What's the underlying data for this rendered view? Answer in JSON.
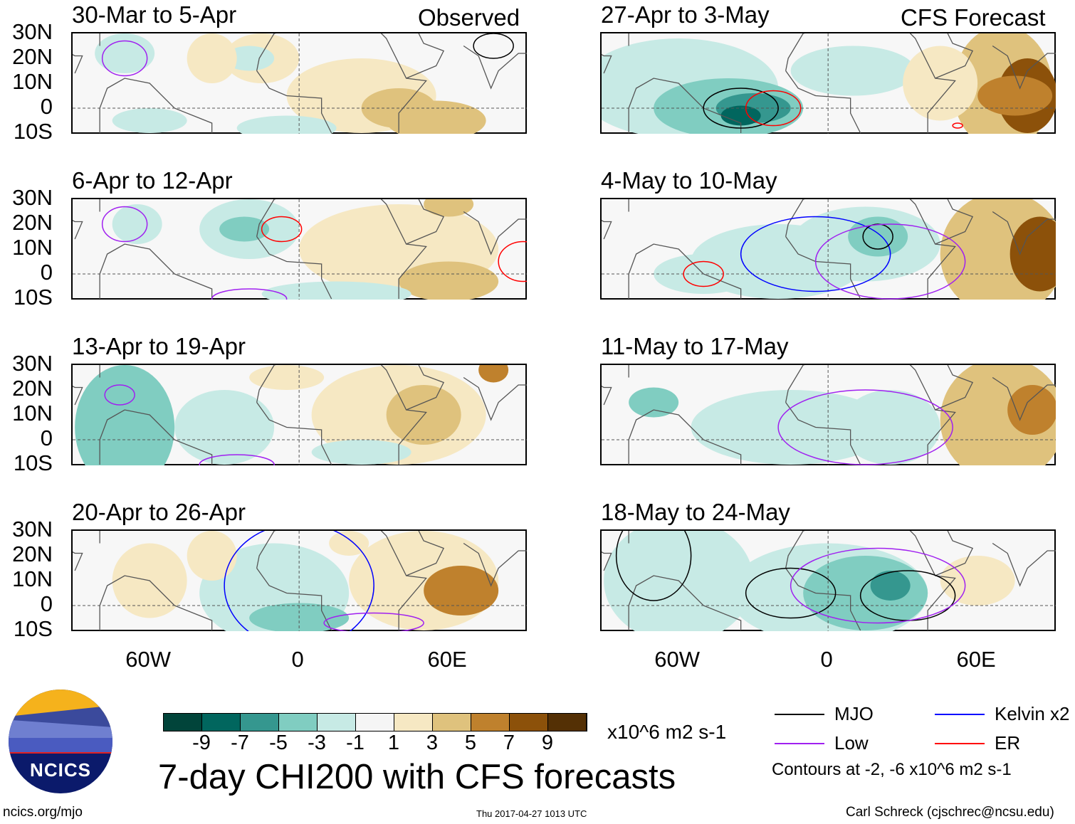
{
  "panels_left_header": "Observed",
  "panels_right_header": "CFS Forecast",
  "panels": [
    {
      "title": "30-Mar to 5-Apr",
      "column": "left",
      "row": 0
    },
    {
      "title": "6-Apr to 12-Apr",
      "column": "left",
      "row": 1
    },
    {
      "title": "13-Apr to 19-Apr",
      "column": "left",
      "row": 2
    },
    {
      "title": "20-Apr to 26-Apr",
      "column": "left",
      "row": 3
    },
    {
      "title": "27-Apr to 3-May",
      "column": "right",
      "row": 0
    },
    {
      "title": "4-May to 10-May",
      "column": "right",
      "row": 1
    },
    {
      "title": "11-May to 17-May",
      "column": "right",
      "row": 2
    },
    {
      "title": "18-May to 24-May",
      "column": "right",
      "row": 3
    }
  ],
  "lat_labels": [
    "30N",
    "20N",
    "10N",
    "0",
    "10S"
  ],
  "lon_labels": [
    "60W",
    "0",
    "60E"
  ],
  "colorbar": {
    "colors": [
      "#01443a",
      "#01665e",
      "#35978f",
      "#80cdc1",
      "#c7eae5",
      "#f5f5f5",
      "#f6e8c3",
      "#dfc27d",
      "#bf812d",
      "#8c510a",
      "#543005"
    ],
    "ticks": [
      "-9",
      "-7",
      "-5",
      "-3",
      "-1",
      "1",
      "3",
      "5",
      "7",
      "9"
    ],
    "units": "x10^6 m2 s-1"
  },
  "main_title": "7-day CHI200 with CFS forecasts",
  "legend": [
    {
      "label": "MJO",
      "color": "#000000"
    },
    {
      "label": "Kelvin x2",
      "color": "#0000ff"
    },
    {
      "label": "Low",
      "color": "#a020f0"
    },
    {
      "label": "ER",
      "color": "#ff0000"
    }
  ],
  "contours_note": "Contours at -2, -6 x10^6 m2 s-1",
  "logo_text": "NCICS",
  "site_link": "ncics.org/mjo",
  "timestamp": "Thu 2017-04-27 1013 UTC",
  "author": "Carl Schreck (cjschrec@ncsu.edu)"
}
